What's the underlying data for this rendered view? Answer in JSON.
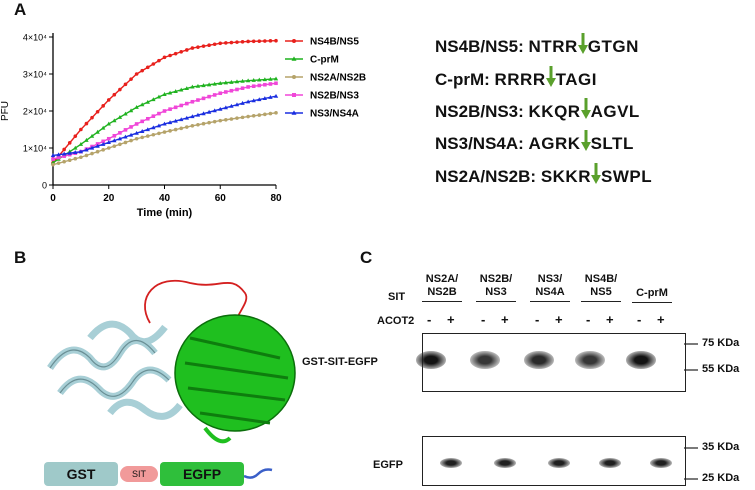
{
  "panels": {
    "a": "A",
    "b": "B",
    "c": "C"
  },
  "chart_data": {
    "type": "line",
    "xlabel": "Time (min)",
    "ylabel": "PFU",
    "xlim": [
      0,
      80
    ],
    "ylim": [
      0,
      40000
    ],
    "xticks": [
      "0",
      "20",
      "40",
      "60",
      "80"
    ],
    "yticks": [
      "0",
      "1×10⁴",
      "2×10⁴",
      "3×10⁴",
      "4×10⁴"
    ],
    "x": [
      0,
      10,
      20,
      30,
      40,
      50,
      60,
      70,
      80
    ],
    "legend_position": "right",
    "series": [
      {
        "name": "NS4B/NS5",
        "color": "#e8201c",
        "marker": "circle",
        "values": [
          6000,
          15000,
          23000,
          30000,
          34500,
          37000,
          38300,
          38800,
          39000
        ]
      },
      {
        "name": "C-prM",
        "color": "#1fb21f",
        "marker": "triangle",
        "values": [
          6000,
          11000,
          16500,
          21000,
          24500,
          26500,
          27500,
          28200,
          28700
        ]
      },
      {
        "name": "NS2A/NS2B",
        "color": "#b5a36a",
        "marker": "circle",
        "values": [
          5500,
          7500,
          10000,
          12500,
          14300,
          16000,
          17400,
          18500,
          19500
        ]
      },
      {
        "name": "NS2B/NS3",
        "color": "#f046d8",
        "marker": "square",
        "values": [
          7000,
          9000,
          12500,
          16500,
          20000,
          22500,
          24800,
          26500,
          27500
        ]
      },
      {
        "name": "NS3/NS4A",
        "color": "#1a2ee0",
        "marker": "triangle",
        "values": [
          8000,
          9000,
          11500,
          14000,
          16500,
          18500,
          20500,
          22500,
          24000
        ]
      }
    ]
  },
  "cleavage_sites": [
    {
      "name": "NS4B/NS5",
      "before": "NTRR",
      "after": "GTGN"
    },
    {
      "name": "C-prM",
      "before": "RRRR",
      "after": "TAGI"
    },
    {
      "name": "NS2B/NS3",
      "before": "KKQR",
      "after": "AGVL"
    },
    {
      "name": "NS3/NS4A",
      "before": "AGRK",
      "after": "SLTL"
    },
    {
      "name": "NS2A/NS2B",
      "before": "SKKR",
      "after": "SWPL"
    }
  ],
  "site_separator": ":",
  "arrow_color": "#5aa02c",
  "construct": {
    "gst": "GST",
    "sit": "SIT",
    "egfp": "EGFP"
  },
  "construct_colors": {
    "gst": "#9fc9c9",
    "sit": "#f19a9a",
    "egfp": "#2fbf3b"
  },
  "gel": {
    "sit_label": "SIT",
    "acot2_label": "ACOT2",
    "lanes": [
      {
        "line1": "NS2A/",
        "line2": "NS2B"
      },
      {
        "line1": "NS2B/",
        "line2": "NS3"
      },
      {
        "line1": "NS3/",
        "line2": "NS4A"
      },
      {
        "line1": "NS4B/",
        "line2": "NS5"
      },
      {
        "line1": "C-prM",
        "line2": ""
      }
    ],
    "minus": "-",
    "plus": "+",
    "blot1_label": "GST-SIT-EGFP",
    "blot2_label": "EGFP",
    "markers_top": [
      "75 KDa",
      "55 KDa"
    ],
    "markers_bottom": [
      "35 KDa",
      "25 KDa"
    ]
  }
}
